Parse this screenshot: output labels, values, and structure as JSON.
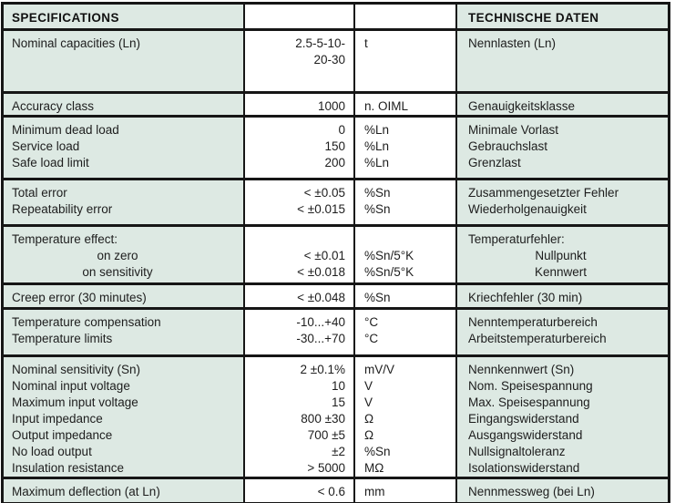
{
  "table": {
    "header": {
      "en": "SPECIFICATIONS",
      "de": "TECHNISCHE DATEN"
    },
    "colors": {
      "cell_background": "#dde9e3",
      "border": "#161616",
      "value_background": "#ffffff",
      "text": "#1d1d1d"
    },
    "rows": [
      {
        "en": [
          "Nominal capacities (Ln)"
        ],
        "values": [
          "2.5-5-10-",
          "20-30"
        ],
        "units": [
          "t"
        ],
        "de": [
          "Nennlasten (Ln)"
        ]
      },
      {
        "en": [
          "Accuracy class"
        ],
        "values": [
          "1000"
        ],
        "units": [
          "n. OIML"
        ],
        "de": [
          "Genauigkeitsklasse"
        ]
      },
      {
        "en": [
          "Minimum dead load",
          "Service load",
          "Safe load limit"
        ],
        "values": [
          "0",
          "150",
          "200"
        ],
        "units": [
          "%Ln",
          "%Ln",
          "%Ln"
        ],
        "de": [
          "Minimale Vorlast",
          "Gebrauchslast",
          "Grenzlast"
        ]
      },
      {
        "en": [
          "Total error",
          "Repeatability error"
        ],
        "values": [
          "< ±0.05",
          "< ±0.015"
        ],
        "units": [
          "%Sn",
          "%Sn"
        ],
        "de": [
          "Zusammengesetzter Fehler",
          "Wiederholgenauigkeit"
        ]
      },
      {
        "en": [
          "Temperature effect:",
          "on zero",
          "on sensitivity"
        ],
        "values": [
          "",
          "< ±0.01",
          "< ±0.018"
        ],
        "units": [
          "",
          "%Sn/5°K",
          "%Sn/5°K"
        ],
        "de": [
          "Temperaturfehler:",
          "Nullpunkt",
          "Kennwert"
        ],
        "sub_align": "center"
      },
      {
        "en": [
          "Creep error (30 minutes)"
        ],
        "values": [
          "< ±0.048"
        ],
        "units": [
          "%Sn"
        ],
        "de": [
          "Kriechfehler (30 min)"
        ]
      },
      {
        "en": [
          "Temperature compensation",
          "Temperature limits"
        ],
        "values": [
          "-10...+40",
          "-30...+70"
        ],
        "units": [
          "°C",
          "°C"
        ],
        "de": [
          "Nenntemperaturbereich",
          "Arbeitstemperaturbereich"
        ]
      },
      {
        "en": [
          "Nominal sensitivity (Sn)",
          "Nominal input voltage",
          "Maximum input voltage",
          "Input impedance",
          "Output impedance",
          "No load output",
          "Insulation resistance"
        ],
        "values": [
          "2 ±0.1%",
          "10",
          "15",
          "800 ±30",
          "700 ±5",
          "±2",
          "> 5000"
        ],
        "units": [
          "mV/V",
          "V",
          "V",
          "Ω",
          "Ω",
          "%Sn",
          "MΩ"
        ],
        "de": [
          "Nennkennwert (Sn)",
          "Nom. Speisespannung",
          "Max. Speisespannung",
          "Eingangswiderstand",
          "Ausgangswiderstand",
          "Nullsignaltoleranz",
          "Isolationswiderstand"
        ]
      },
      {
        "en": [
          "Maximum deflection (at Ln)"
        ],
        "values": [
          "< 0.6"
        ],
        "units": [
          "mm"
        ],
        "de": [
          "Nennmessweg (bei Ln)"
        ]
      }
    ]
  }
}
